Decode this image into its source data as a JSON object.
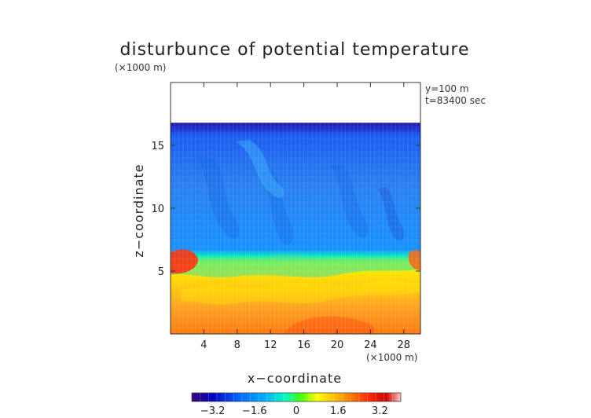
{
  "chart_data": {
    "type": "heatmap",
    "title": "disturbunce of potential temperature",
    "z_unit_label": "(×1000 m)",
    "x_unit_label": "(×1000 m)",
    "xlabel": "x−coordinate",
    "ylabel": "z−coordinate",
    "annotations": [
      "y=100 m",
      "t=83400 sec"
    ],
    "xlim": [
      0,
      30
    ],
    "ylim": [
      0,
      20
    ],
    "x_ticks": [
      4,
      8,
      12,
      16,
      20,
      24,
      28
    ],
    "x_tick_labels": [
      "4",
      "8",
      "12",
      "16",
      "20",
      "24",
      "28"
    ],
    "y_ticks": [
      5,
      10,
      15
    ],
    "y_tick_labels": [
      "5",
      "10",
      "15"
    ],
    "data_top_z": 16.8,
    "colorbar": {
      "range": [
        -4,
        4
      ],
      "ticks": [
        -3.2,
        -1.6,
        0,
        1.6,
        3.2
      ],
      "tick_labels": [
        "−3.2",
        "−1.6",
        "0",
        "1.6",
        "3.2"
      ],
      "colors": [
        "#3a0078",
        "#0000c0",
        "#0060ff",
        "#00b0ff",
        "#00ffc0",
        "#40ff00",
        "#ffff00",
        "#ffa000",
        "#ff3000",
        "#d00000",
        "#ffc8c8"
      ]
    }
  }
}
